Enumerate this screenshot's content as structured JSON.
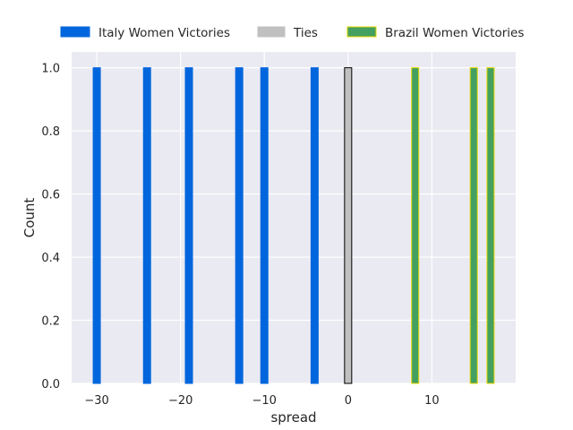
{
  "chart_data": {
    "type": "bar",
    "xlabel": "spread",
    "ylabel": "Count",
    "xlim": [
      -33,
      20
    ],
    "ylim": [
      0,
      1.05
    ],
    "xticks": [
      -30,
      -20,
      -10,
      0,
      10
    ],
    "xtick_labels": [
      "−30",
      "−20",
      "−10",
      "0",
      "10"
    ],
    "yticks": [
      0.0,
      0.2,
      0.4,
      0.6,
      0.8,
      1.0
    ],
    "ytick_labels": [
      "0.0",
      "0.2",
      "0.4",
      "0.6",
      "0.8",
      "1.0"
    ],
    "grid": true,
    "legend_position": "top",
    "series": [
      {
        "name": "Italy Women Victories",
        "color": "#0066dd",
        "edgecolor": "#0066dd",
        "x": [
          -30,
          -24,
          -19,
          -13,
          -10,
          -4
        ],
        "values": [
          1,
          1,
          1,
          1,
          1,
          1
        ]
      },
      {
        "name": "Ties",
        "color": "#c0c0c0",
        "edgecolor": "#000000",
        "x": [
          0
        ],
        "values": [
          1
        ]
      },
      {
        "name": "Brazil Women Victories",
        "color": "#44a060",
        "edgecolor": "#e6d800",
        "x": [
          8,
          15,
          17
        ],
        "values": [
          1,
          1,
          1
        ]
      }
    ]
  }
}
